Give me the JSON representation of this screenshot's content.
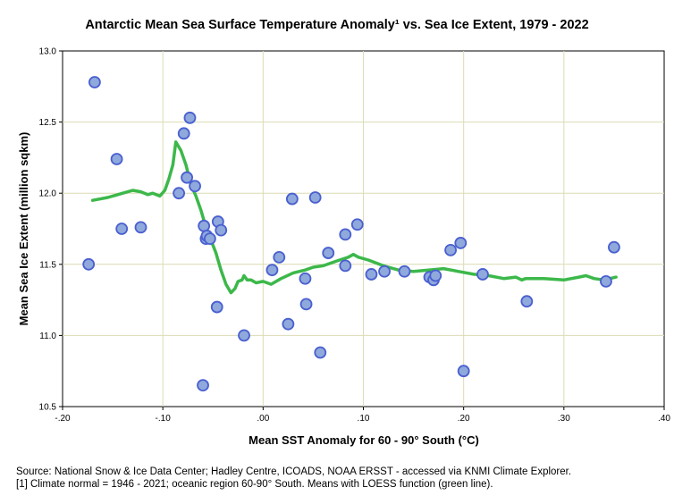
{
  "chart_data": {
    "type": "scatter",
    "title": "Antarctic Mean Sea Surface Temperature Anomaly¹ vs. Sea Ice Extent, 1979 - 2022",
    "xlabel": "Mean SST Anomaly for 60 - 90° South (°C)",
    "ylabel": "Mean Sea Ice Extent (million sqkm)",
    "xlim": [
      -0.2,
      0.4
    ],
    "ylim": [
      10.5,
      13.0
    ],
    "xticks": [
      -0.2,
      -0.1,
      0.0,
      0.1,
      0.2,
      0.3,
      0.4
    ],
    "xtick_labels": [
      "-.20",
      "-.10",
      ".00",
      ".10",
      ".20",
      ".30",
      ".40"
    ],
    "yticks": [
      10.5,
      11.0,
      11.5,
      12.0,
      12.5,
      13.0
    ],
    "ytick_labels": [
      "10.5",
      "11.0",
      "11.5",
      "12.0",
      "12.5",
      "13.0"
    ],
    "grid": true,
    "colors": {
      "point_fill": "#8fa9dc",
      "point_stroke": "#4a5fd0",
      "loess": "#3cb84a",
      "gridline": "#dcdcb4"
    },
    "series": [
      {
        "type": "scatter",
        "points": [
          [
            -0.174,
            11.5
          ],
          [
            -0.168,
            12.78
          ],
          [
            -0.146,
            12.24
          ],
          [
            -0.141,
            11.75
          ],
          [
            -0.122,
            11.76
          ],
          [
            -0.084,
            12.0
          ],
          [
            -0.079,
            12.42
          ],
          [
            -0.076,
            12.11
          ],
          [
            -0.073,
            12.53
          ],
          [
            -0.068,
            12.05
          ],
          [
            -0.06,
            10.65
          ],
          [
            -0.059,
            11.77
          ],
          [
            -0.057,
            11.68
          ],
          [
            -0.056,
            11.7
          ],
          [
            -0.053,
            11.68
          ],
          [
            -0.046,
            11.2
          ],
          [
            -0.045,
            11.8
          ],
          [
            -0.042,
            11.74
          ],
          [
            -0.019,
            11.0
          ],
          [
            0.009,
            11.46
          ],
          [
            0.016,
            11.55
          ],
          [
            0.025,
            11.08
          ],
          [
            0.029,
            11.96
          ],
          [
            0.042,
            11.4
          ],
          [
            0.043,
            11.22
          ],
          [
            0.052,
            11.97
          ],
          [
            0.057,
            10.88
          ],
          [
            0.065,
            11.58
          ],
          [
            0.082,
            11.71
          ],
          [
            0.082,
            11.49
          ],
          [
            0.094,
            11.78
          ],
          [
            0.108,
            11.43
          ],
          [
            0.121,
            11.45
          ],
          [
            0.141,
            11.45
          ],
          [
            0.166,
            11.41
          ],
          [
            0.17,
            11.39
          ],
          [
            0.172,
            11.42
          ],
          [
            0.187,
            11.6
          ],
          [
            0.197,
            11.65
          ],
          [
            0.2,
            10.75
          ],
          [
            0.219,
            11.43
          ],
          [
            0.263,
            11.24
          ],
          [
            0.342,
            11.38
          ],
          [
            0.35,
            11.62
          ]
        ]
      },
      {
        "type": "line",
        "points": [
          [
            -0.17,
            11.95
          ],
          [
            -0.155,
            11.97
          ],
          [
            -0.14,
            12.0
          ],
          [
            -0.13,
            12.02
          ],
          [
            -0.122,
            12.01
          ],
          [
            -0.115,
            11.99
          ],
          [
            -0.11,
            12.0
          ],
          [
            -0.103,
            11.98
          ],
          [
            -0.098,
            12.02
          ],
          [
            -0.094,
            12.1
          ],
          [
            -0.09,
            12.2
          ],
          [
            -0.087,
            12.36
          ],
          [
            -0.082,
            12.3
          ],
          [
            -0.077,
            12.2
          ],
          [
            -0.072,
            12.06
          ],
          [
            -0.067,
            11.98
          ],
          [
            -0.062,
            11.88
          ],
          [
            -0.057,
            11.76
          ],
          [
            -0.052,
            11.67
          ],
          [
            -0.047,
            11.58
          ],
          [
            -0.042,
            11.46
          ],
          [
            -0.037,
            11.36
          ],
          [
            -0.032,
            11.3
          ],
          [
            -0.028,
            11.33
          ],
          [
            -0.025,
            11.38
          ],
          [
            -0.021,
            11.39
          ],
          [
            -0.019,
            11.42
          ],
          [
            -0.016,
            11.39
          ],
          [
            -0.012,
            11.39
          ],
          [
            -0.007,
            11.37
          ],
          [
            0.0,
            11.38
          ],
          [
            0.008,
            11.36
          ],
          [
            0.018,
            11.4
          ],
          [
            0.03,
            11.44
          ],
          [
            0.042,
            11.46
          ],
          [
            0.05,
            11.48
          ],
          [
            0.06,
            11.49
          ],
          [
            0.072,
            11.52
          ],
          [
            0.085,
            11.55
          ],
          [
            0.09,
            11.57
          ],
          [
            0.095,
            11.55
          ],
          [
            0.105,
            11.53
          ],
          [
            0.12,
            11.49
          ],
          [
            0.135,
            11.46
          ],
          [
            0.15,
            11.45
          ],
          [
            0.165,
            11.46
          ],
          [
            0.18,
            11.47
          ],
          [
            0.195,
            11.45
          ],
          [
            0.21,
            11.43
          ],
          [
            0.225,
            11.42
          ],
          [
            0.24,
            11.4
          ],
          [
            0.252,
            11.41
          ],
          [
            0.258,
            11.39
          ],
          [
            0.262,
            11.4
          ],
          [
            0.28,
            11.4
          ],
          [
            0.3,
            11.39
          ],
          [
            0.315,
            11.41
          ],
          [
            0.322,
            11.42
          ],
          [
            0.33,
            11.4
          ],
          [
            0.34,
            11.39
          ],
          [
            0.352,
            11.41
          ]
        ]
      }
    ]
  },
  "footnotes": {
    "source": "Source: National Snow & Ice Data Center; Hadley Centre, ICOADS, NOAA ERSST - accessed via KNMI Climate Explorer.",
    "note": "[1] Climate normal = 1946 - 2021; oceanic region 60-90° South. Means with LOESS function (green line)."
  }
}
